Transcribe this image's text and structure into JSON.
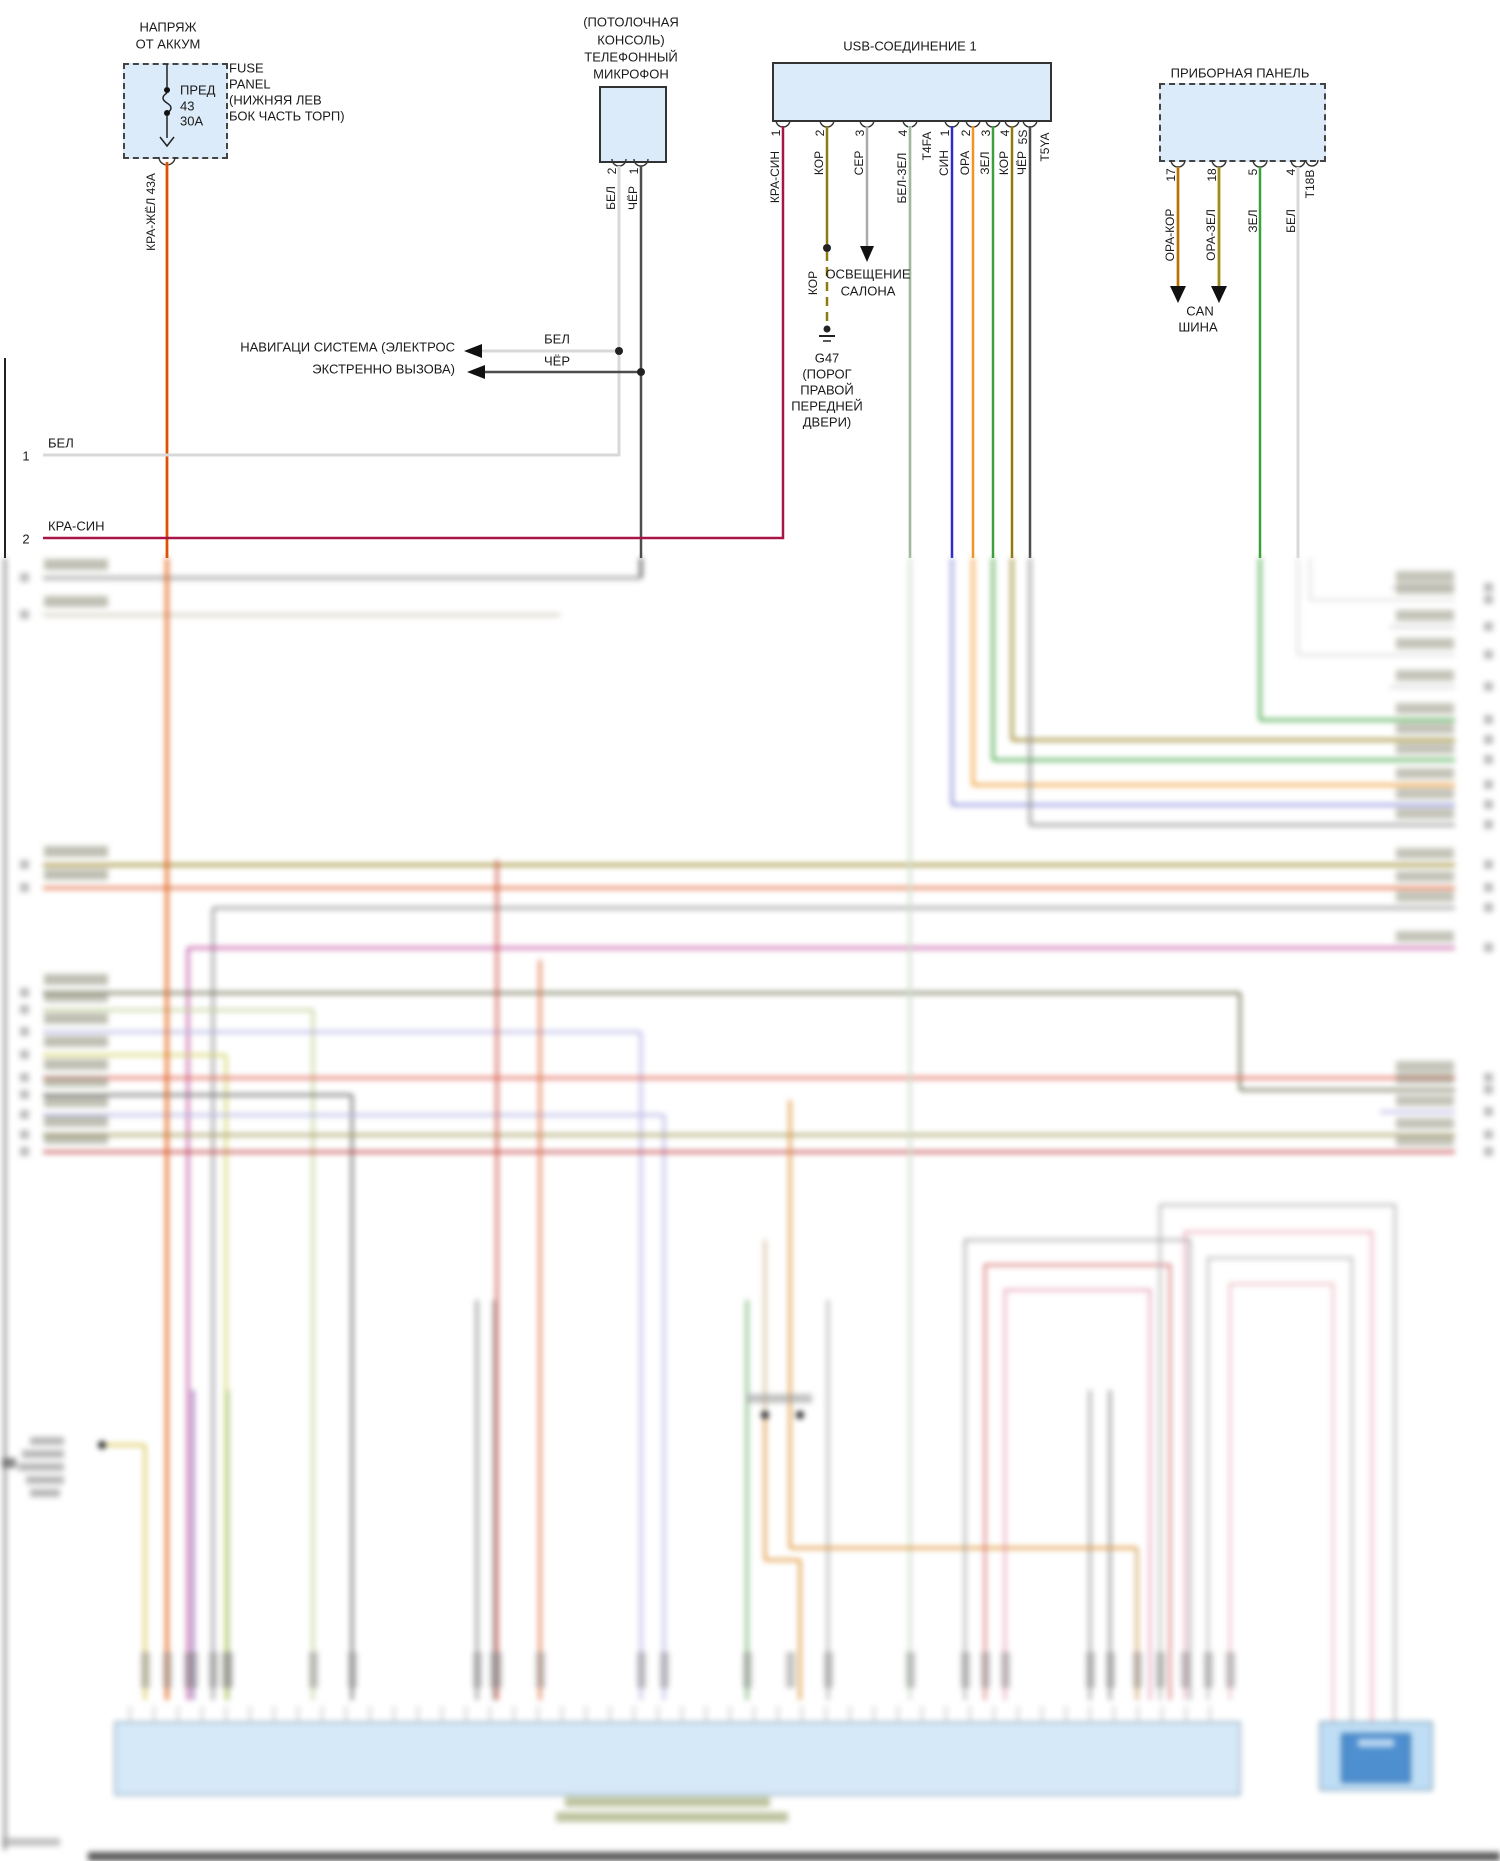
{
  "battery_feed": {
    "title": [
      "НАПРЯЖ",
      "ОТ АККУМ"
    ],
    "fuse": {
      "name": "ПРЕД",
      "number": "43",
      "rating": "30А"
    },
    "panel_label": [
      "FUSE",
      "PANEL",
      "(НИЖНЯЯ ЛЕВ",
      "БОК ЧАСТЬ ТОРП)"
    ],
    "wire_label": "КРА-ЖЁЛ  43А"
  },
  "microphone": {
    "title": [
      "(ПОТОЛОЧНАЯ",
      "КОНСОЛЬ)",
      "ТЕЛЕФОННЫЙ",
      "МИКРОФОН"
    ],
    "pins": [
      {
        "num": "2",
        "wire": "БЕЛ"
      },
      {
        "num": "1",
        "wire": "ЧЁР"
      }
    ]
  },
  "navigation": {
    "label": [
      "НАВИГАЦИ СИСТЕМА (ЭЛЕКТРОС",
      "ЭКСТРЕННО ВЫЗОВА)"
    ],
    "wire_top": "БЕЛ",
    "wire_bottom": "ЧЁР"
  },
  "edge_wires": [
    {
      "num": "1",
      "name": "БЕЛ"
    },
    {
      "num": "2",
      "name": "КРА-СИН"
    }
  ],
  "usb": {
    "title": "USB-СОЕДИНЕНИЕ 1",
    "conn1": {
      "id": "T4FA",
      "pins": [
        {
          "num": "1",
          "wire": "КРА-СИН"
        },
        {
          "num": "2",
          "wire": "КОР"
        },
        {
          "num": "3",
          "wire": "СЕР"
        },
        {
          "num": "4",
          "wire": "БЕЛ-ЗЕЛ"
        }
      ]
    },
    "conn2": {
      "id": "T5YA",
      "pins": [
        {
          "num": "1",
          "wire": "СИН"
        },
        {
          "num": "2",
          "wire": "ОРА"
        },
        {
          "num": "3",
          "wire": "ЗЕЛ"
        },
        {
          "num": "4",
          "wire": "КОР"
        },
        {
          "num": "5S",
          "wire": "ЧЁР"
        }
      ]
    }
  },
  "branches": {
    "ground_wire": "КОР",
    "cabin_light": [
      "ОСВЕЩЕНИЕ",
      "САЛОНА"
    ],
    "ground": [
      "G47",
      "(ПОРОГ",
      "ПРАВОЙ",
      "ПЕРЕДНЕЙ",
      "ДВЕРИ)"
    ]
  },
  "instrument_panel": {
    "title": "ПРИБОРНАЯ ПАНЕЛЬ",
    "id": "T18B",
    "pins": [
      {
        "num": "17",
        "wire": "ОРА-КОР"
      },
      {
        "num": "18",
        "wire": "ОРА-ЗЕЛ"
      },
      {
        "num": "5",
        "wire": "ЗЕЛ"
      },
      {
        "num": "4",
        "wire": "БЕЛ"
      }
    ],
    "can": [
      "CAN",
      "ШИНА"
    ]
  },
  "colors": {
    "box_fill": "#dcebf9",
    "box_border": "#333333",
    "wire_bel": "#d8d8d8",
    "wire_cher": "#4d4d4d",
    "wire_kra_sin": "#a81448",
    "wire_kor": "#8f7a12",
    "wire_ser": "#ababab",
    "wire_bel_zel_base": "#dddddd",
    "wire_bel_zel_stripe": "#6aa86a",
    "wire_sin": "#2a2ad0",
    "wire_ora": "#f09523",
    "wire_zel": "#3ba13b",
    "wire_kra_zhel": "#f07b17",
    "wire_kra_zhel_stripe": "#cc2200",
    "wire_ora_kor": "#e89420",
    "wire_ora_kor_stripe": "#7a4e10",
    "wire_ora_zel_stripe": "#2f8f2f"
  }
}
